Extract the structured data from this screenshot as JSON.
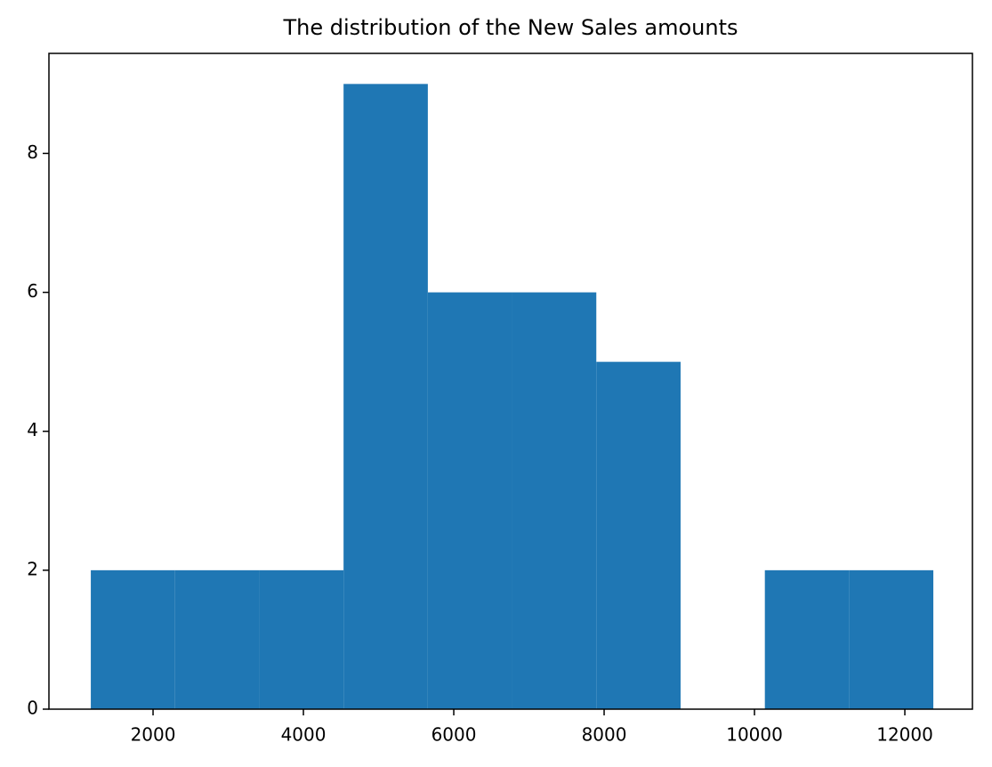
{
  "chart_data": {
    "type": "histogram",
    "title": "The distribution of the New Sales amounts",
    "bins": [
      1172,
      2293,
      3413,
      4534,
      5655,
      6775,
      7896,
      9017,
      10138,
      11258,
      12379
    ],
    "values": [
      2,
      2,
      2,
      9,
      6,
      6,
      5,
      0,
      2,
      2
    ],
    "color": "#1f77b4",
    "xlim": [
      615,
      12899
    ],
    "xticks": [
      2000,
      4000,
      6000,
      8000,
      10000,
      12000
    ],
    "ylim": [
      0,
      9.44
    ],
    "yticks": [
      0,
      2,
      4,
      6,
      8
    ]
  }
}
